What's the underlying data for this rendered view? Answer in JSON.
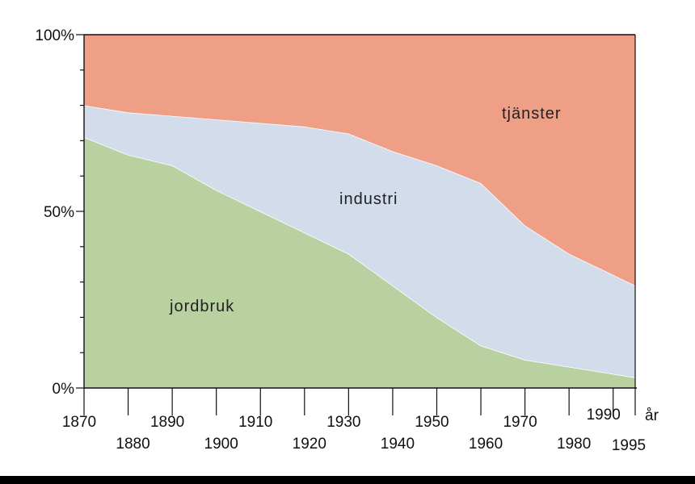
{
  "chart_data": {
    "type": "area",
    "stacked": true,
    "xlabel": "år",
    "ylim": [
      0,
      100
    ],
    "y_ticks": [
      "0%",
      "50%",
      "100%"
    ],
    "x_ticks": [
      "1870",
      "1880",
      "1890",
      "1900",
      "1910",
      "1920",
      "1930",
      "1940",
      "1950",
      "1960",
      "1970",
      "1980",
      "1990",
      "1995"
    ],
    "x": [
      1870,
      1880,
      1890,
      1900,
      1910,
      1920,
      1930,
      1940,
      1950,
      1960,
      1970,
      1980,
      1990,
      1995
    ],
    "series": [
      {
        "name": "jordbruk",
        "color": "#b9d1a0",
        "values": [
          71,
          66,
          63,
          56,
          50,
          44,
          38,
          29,
          20,
          12,
          8,
          6,
          4,
          3
        ]
      },
      {
        "name": "industri",
        "color": "#d2dceb",
        "values": [
          9,
          12,
          14,
          20,
          25,
          30,
          34,
          38,
          43,
          46,
          38,
          32,
          28,
          26
        ]
      },
      {
        "name": "tjänster",
        "color": "#ee9f86",
        "values": [
          20,
          22,
          23,
          24,
          25,
          26,
          28,
          33,
          37,
          42,
          54,
          62,
          68,
          71
        ]
      }
    ],
    "grid": false,
    "legend": "labels inside areas"
  },
  "colors": {
    "axis": "#111111",
    "frame_bottom": "#000000"
  }
}
